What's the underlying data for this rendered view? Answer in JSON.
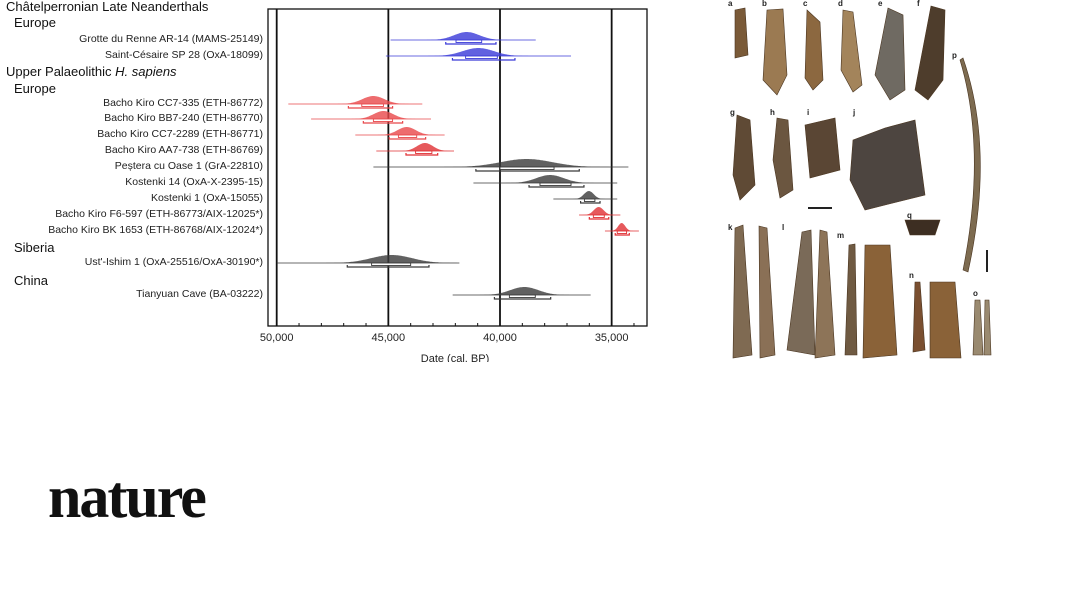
{
  "chart_data": {
    "type": "range-distribution",
    "xlabel": "Date (cal. BP)",
    "xlim": [
      50400,
      33500
    ],
    "xticks": [
      50000,
      45000,
      40000,
      35000
    ],
    "xtick_labels": [
      "50,000",
      "45,000",
      "40,000",
      "35,000"
    ],
    "gridlines": [
      50000,
      45000,
      40000,
      35000
    ],
    "groups": [
      {
        "heading": "Châtelperronian Late Neanderthals",
        "level": 1
      },
      {
        "heading": "Europe",
        "level": 2
      },
      {
        "heading": "Upper Palaeolithic ",
        "heading_italic": "H. sapiens",
        "level": 1
      },
      {
        "heading": "Europe",
        "level": 2
      },
      {
        "heading": "Siberia",
        "level": 2
      },
      {
        "heading": "China",
        "level": 2
      }
    ],
    "series": [
      {
        "name": "Grotte du Renne AR-14 (MAMS-25149)",
        "color": "#3a3ad8",
        "peak": 41490,
        "range": [
          44900,
          38400
        ],
        "hpd95": [
          42430,
          40180
        ],
        "hpd68": [
          41970,
          40820
        ]
      },
      {
        "name": "Saint-Césaire SP 28 (OxA-18099)",
        "color": "#3a3ad8",
        "peak": 40970,
        "range": [
          45110,
          36820
        ],
        "hpd95": [
          42130,
          39330
        ],
        "hpd68": [
          41540,
          40120
        ]
      },
      {
        "name": "Bacho Kiro CC7-335 (ETH-86772)",
        "color": "#e8474a",
        "peak": 45670,
        "range": [
          49480,
          43480
        ],
        "hpd95": [
          46790,
          44810
        ],
        "hpd68": [
          46190,
          45220
        ]
      },
      {
        "name": "Bacho Kiro BB7-240 (ETH-86770)",
        "color": "#e8474a",
        "peak": 45220,
        "range": [
          48460,
          43090
        ],
        "hpd95": [
          46120,
          44360
        ],
        "hpd68": [
          45670,
          44810
        ]
      },
      {
        "name": "Bacho Kiro CC7-2289 (ETH-86771)",
        "color": "#e8474a",
        "peak": 44180,
        "range": [
          46480,
          42480
        ],
        "hpd95": [
          44960,
          43330
        ],
        "hpd68": [
          44550,
          43730
        ]
      },
      {
        "name": "Bacho Kiro AA7-738 (ETH-86769)",
        "color": "#e02f33",
        "peak": 43360,
        "range": [
          45540,
          42060
        ],
        "hpd95": [
          44210,
          42790
        ],
        "hpd68": [
          43780,
          43050
        ]
      },
      {
        "name": "Peștera cu Oase 1 (GrA-22810)",
        "color": "#3a3a3a",
        "peak": 38810,
        "range": [
          45670,
          34250
        ],
        "hpd95": [
          41080,
          36450
        ],
        "hpd68": [
          40000,
          37580
        ]
      },
      {
        "name": "Kostenki 14 (OxA-X-2395-15)",
        "color": "#3a3a3a",
        "peak": 37760,
        "range": [
          41190,
          34750
        ],
        "hpd95": [
          38700,
          36240
        ],
        "hpd68": [
          38210,
          36820
        ]
      },
      {
        "name": "Kostenki 1 (OxA-15055)",
        "color": "#3a3a3a",
        "peak": 36020,
        "range": [
          37610,
          34750
        ],
        "hpd95": [
          36390,
          35520
        ],
        "hpd68": [
          36220,
          35750
        ]
      },
      {
        "name": "Bacho Kiro F6-597 (ETH-86773/AIX-12025*)",
        "color": "#e02f33",
        "peak": 35580,
        "range": [
          36460,
          34610
        ],
        "hpd95": [
          36000,
          35130
        ],
        "hpd68": [
          35820,
          35330
        ]
      },
      {
        "name": "Bacho Kiro BK 1653 (ETH-86768/AIX-12024*)",
        "color": "#e02f33",
        "peak": 34550,
        "range": [
          35300,
          33780
        ],
        "hpd95": [
          34840,
          34210
        ],
        "hpd68": [
          34750,
          34330
        ]
      },
      {
        "name": "Ust'-Ishim 1 (OxA-25516/OxA-30190*)",
        "color": "#3a3a3a",
        "peak": 44850,
        "range": [
          50000,
          41820
        ],
        "hpd95": [
          46840,
          43180
        ],
        "hpd68": [
          45750,
          44000
        ]
      },
      {
        "name": "Tianyuan Cave (BA-03222)",
        "color": "#3a3a3a",
        "peak": 38910,
        "range": [
          42120,
          35940
        ],
        "hpd95": [
          40250,
          37730
        ],
        "hpd68": [
          39580,
          38420
        ]
      }
    ]
  },
  "photo": {
    "panel_labels": [
      "a",
      "b",
      "c",
      "d",
      "e",
      "f",
      "g",
      "h",
      "i",
      "j",
      "k",
      "l",
      "m",
      "n",
      "o",
      "p",
      "q"
    ]
  },
  "logo": {
    "text": "nature"
  }
}
